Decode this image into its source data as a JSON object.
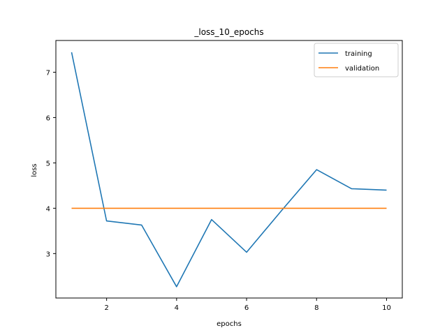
{
  "chart_data": {
    "type": "line",
    "title": "_loss_10_epochs",
    "xlabel": "epochs",
    "ylabel": "loss",
    "x": [
      1,
      2,
      3,
      4,
      5,
      6,
      7,
      8,
      9,
      10
    ],
    "xlim": [
      0.55,
      10.45
    ],
    "ylim": [
      2.02,
      7.7
    ],
    "xticks": [
      2,
      4,
      6,
      8,
      10
    ],
    "yticks": [
      3,
      4,
      5,
      6,
      7
    ],
    "grid": false,
    "legend_position": "top-right",
    "series": [
      {
        "name": "training",
        "color": "#1f77b4",
        "values": [
          7.44,
          3.72,
          3.63,
          2.27,
          3.75,
          3.03,
          3.95,
          4.85,
          4.43,
          4.4
        ]
      },
      {
        "name": "validation",
        "color": "#ff7f0e",
        "values": [
          4.0,
          4.0,
          4.0,
          4.0,
          4.0,
          4.0,
          4.0,
          4.0,
          4.0,
          4.0
        ]
      }
    ]
  }
}
